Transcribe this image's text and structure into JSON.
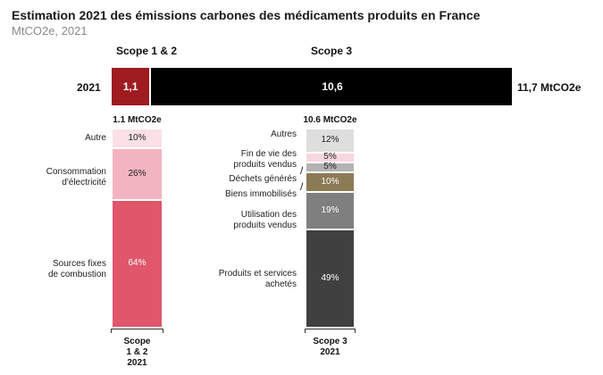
{
  "header": {
    "title": "Estimation 2021 des émissions carbones des médicaments produits en France",
    "subtitle": "MtCO2e, 2021"
  },
  "chart_data": [
    {
      "type": "bar",
      "orientation": "horizontal",
      "series_headers": [
        "Scope 1 & 2",
        "Scope 3"
      ],
      "categories": [
        "2021"
      ],
      "series": [
        {
          "name": "Scope 1 & 2",
          "values": [
            1.1
          ],
          "value_label": "1,1",
          "color": "#9e1b20"
        },
        {
          "name": "Scope 3",
          "values": [
            10.6
          ],
          "value_label": "10,6",
          "color": "#000000"
        }
      ],
      "total_label": "11,7 MtCO2e",
      "xlim": [
        0,
        11.7
      ]
    },
    {
      "type": "bar",
      "stacked": true,
      "unit": "%",
      "categories": [
        "Scope 1 & 2 2021",
        "Scope 3 2021"
      ],
      "axis_labels": [
        [
          "Scope",
          "1 & 2",
          "2021"
        ],
        [
          "Scope 3",
          "2021"
        ]
      ],
      "columns": [
        {
          "total_label": "1.1 MtCO2e",
          "segments": [
            {
              "name": "Sources fixes de combustion",
              "lines": [
                "Sources fixes",
                "de combustion"
              ],
              "value": 64,
              "label": "64%",
              "color": "#e0566b",
              "text_color": "#ffffff"
            },
            {
              "name": "Consommation d'électricité",
              "lines": [
                "Consommation",
                "d'électricité"
              ],
              "value": 26,
              "label": "26%",
              "color": "#f2b4c0",
              "text_color": "#222222"
            },
            {
              "name": "Autre",
              "lines": [
                "Autre"
              ],
              "value": 10,
              "label": "10%",
              "color": "#fbe0e6",
              "text_color": "#222222"
            }
          ]
        },
        {
          "total_label": "10.6 MtCO2e",
          "segments": [
            {
              "name": "Produits et services achetés",
              "lines": [
                "Produits et services",
                "achetés"
              ],
              "value": 49,
              "label": "49%",
              "color": "#404040",
              "text_color": "#ffffff"
            },
            {
              "name": "Utilisation des produits vendus",
              "lines": [
                "Utilisation des",
                "produits vendus"
              ],
              "value": 19,
              "label": "19%",
              "color": "#7f7f7f",
              "text_color": "#ffffff"
            },
            {
              "name": "Biens immobilisés",
              "lines": [
                "Biens immobilisés"
              ],
              "value": 10,
              "label": "10%",
              "color": "#8b7b55",
              "text_color": "#ffffff"
            },
            {
              "name": "Déchets générés",
              "lines": [
                "Déchets générés"
              ],
              "value": 5,
              "label": "5%",
              "color": "#b3b3b3",
              "text_color": "#222222"
            },
            {
              "name": "Fin de vie des produits vendus",
              "lines": [
                "Fin de vie des",
                "produits vendus"
              ],
              "value": 5,
              "label": "5%",
              "color": "#f7d7dd",
              "text_color": "#222222"
            },
            {
              "name": "Autres",
              "lines": [
                "Autres"
              ],
              "value": 12,
              "label": "12%",
              "color": "#dedede",
              "text_color": "#222222"
            }
          ]
        }
      ]
    }
  ]
}
